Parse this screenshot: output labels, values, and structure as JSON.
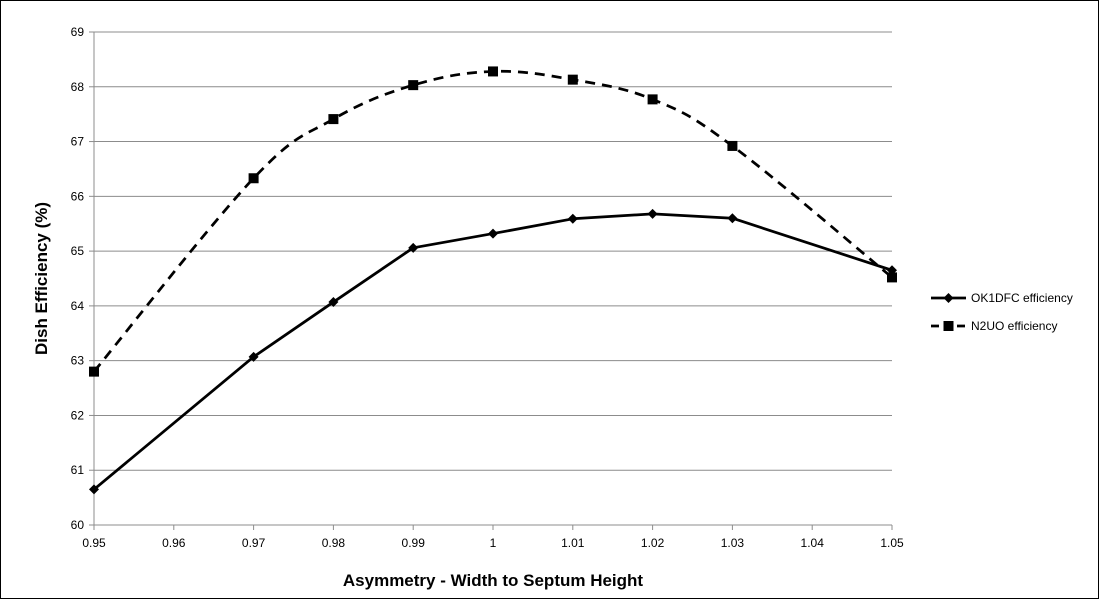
{
  "chart_data": {
    "type": "line",
    "title": "",
    "xlabel": "Asymmetry  - Width to Septum Height",
    "ylabel": "Dish Efficiency (%)",
    "xlim": [
      0.95,
      1.05
    ],
    "ylim": [
      60,
      69
    ],
    "x_ticks": [
      "0.95",
      "0.96",
      "0.97",
      "0.98",
      "0.99",
      "1",
      "1.01",
      "1.02",
      "1.03",
      "1.04",
      "1.05"
    ],
    "y_ticks": [
      "60",
      "61",
      "62",
      "63",
      "64",
      "65",
      "66",
      "67",
      "68",
      "69"
    ],
    "grid": "horizontal",
    "legend_position": "right",
    "series": [
      {
        "name": "OK1DFC efficiency",
        "marker": "diamond",
        "line_style": "solid",
        "color": "#000000",
        "x": [
          0.95,
          0.97,
          0.98,
          0.99,
          1.0,
          1.01,
          1.02,
          1.03,
          1.05
        ],
        "y": [
          60.65,
          63.07,
          64.07,
          65.06,
          65.32,
          65.59,
          65.68,
          65.6,
          64.65
        ]
      },
      {
        "name": "N2UO efficiency",
        "marker": "square",
        "line_style": "dashed",
        "color": "#000000",
        "x": [
          0.95,
          0.97,
          0.98,
          0.99,
          1.0,
          1.01,
          1.02,
          1.03,
          1.05
        ],
        "y": [
          62.8,
          66.33,
          67.41,
          68.03,
          68.28,
          68.13,
          67.77,
          66.92,
          64.52
        ]
      }
    ]
  }
}
